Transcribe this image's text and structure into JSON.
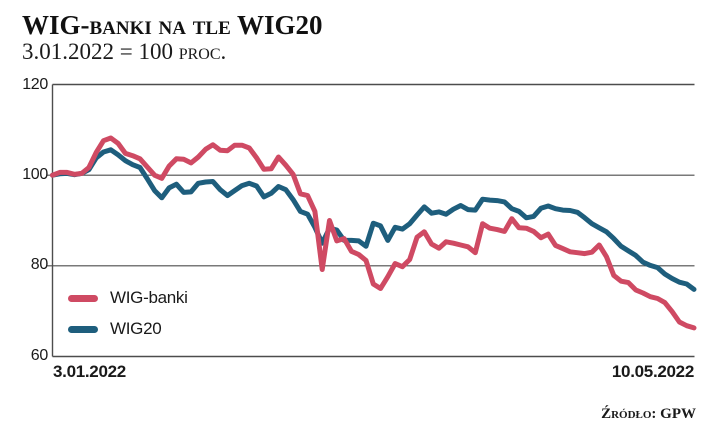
{
  "header": {
    "title": "WIG-banki na tle WIG20",
    "subtitle": "3.01.2022 = 100 proc."
  },
  "source_note": "Źródło: GPW",
  "chart_data": {
    "type": "line",
    "title": "WIG-banki na tle WIG20",
    "subtitle": "3.01.2022 = 100 proc.",
    "xlabel": "",
    "ylabel": "",
    "ylim": [
      60,
      120
    ],
    "yticks": [
      "120",
      "100",
      "80",
      "60"
    ],
    "ytick_values": [
      120,
      100,
      80,
      60
    ],
    "gridlines_at": [
      100,
      80
    ],
    "grid": "horizontal-only",
    "legend_position": "inside-bottom-left",
    "x_axis": {
      "start_label": "3.01.2022",
      "end_label": "10.05.2022",
      "description": "trading days from 3.01.2022 to 10.05.2022, both series indexed to 100 on 3.01.2022"
    },
    "series": [
      {
        "name": "WIG-banki",
        "color": "#cf4a63",
        "values": [
          100,
          100.6,
          100.6,
          100.2,
          100.4,
          101.7,
          105,
          107.6,
          108.2,
          107,
          104.8,
          104.3,
          103.6,
          101.8,
          100,
          99.3,
          102,
          103.6,
          103.5,
          102.7,
          104,
          105.7,
          106.7,
          105.5,
          105.4,
          106.6,
          106.6,
          106,
          103.8,
          101.3,
          101.4,
          104,
          102.2,
          100.2,
          95.9,
          95.5,
          92,
          79.2,
          90,
          85.5,
          86,
          83.2,
          82.5,
          81.2,
          76,
          75,
          77.6,
          80.5,
          79.8,
          81.4,
          86.3,
          87.5,
          84.8,
          83.9,
          85.3,
          85,
          84.6,
          84.2,
          82.9,
          89.3,
          88.3,
          88,
          87.6,
          90.4,
          88.4,
          88.3,
          87.6,
          86.2,
          87,
          84.5,
          83.8,
          83.1,
          82.9,
          82.7,
          83,
          84.6,
          82,
          77.9,
          76.6,
          76.3,
          74.7,
          74,
          73.2,
          72.8,
          71.9,
          69.9,
          67.6,
          66.8,
          66.3
        ]
      },
      {
        "name": "WIG20",
        "color": "#1e5e7d",
        "values": [
          100,
          100.3,
          100.4,
          100.1,
          100.4,
          101.2,
          103.8,
          105.1,
          105.6,
          104.5,
          103.2,
          102.3,
          101.7,
          99.2,
          96.6,
          95,
          97.2,
          98,
          96.2,
          96.3,
          98.2,
          98.5,
          98.6,
          96.8,
          95.5,
          96.6,
          97.7,
          98.2,
          97.6,
          95.2,
          96,
          97.5,
          96.8,
          94.6,
          92,
          91.4,
          88.5,
          85,
          88.3,
          87.9,
          85.6,
          85.6,
          85.5,
          84.3,
          89.4,
          88.8,
          85.6,
          88.5,
          88.1,
          89.3,
          91.2,
          93,
          91.6,
          91.9,
          91.4,
          92.5,
          93.3,
          92.4,
          92.3,
          94.7,
          94.5,
          94.4,
          94.1,
          92.6,
          92,
          90.6,
          90.9,
          92.7,
          93.2,
          92.6,
          92.3,
          92.2,
          91.8,
          90.6,
          89.3,
          88.4,
          87.5,
          86,
          84.3,
          83.3,
          82.3,
          80.8,
          80.1,
          79.6,
          78.2,
          77.2,
          76.4,
          76,
          74.8
        ]
      }
    ]
  }
}
